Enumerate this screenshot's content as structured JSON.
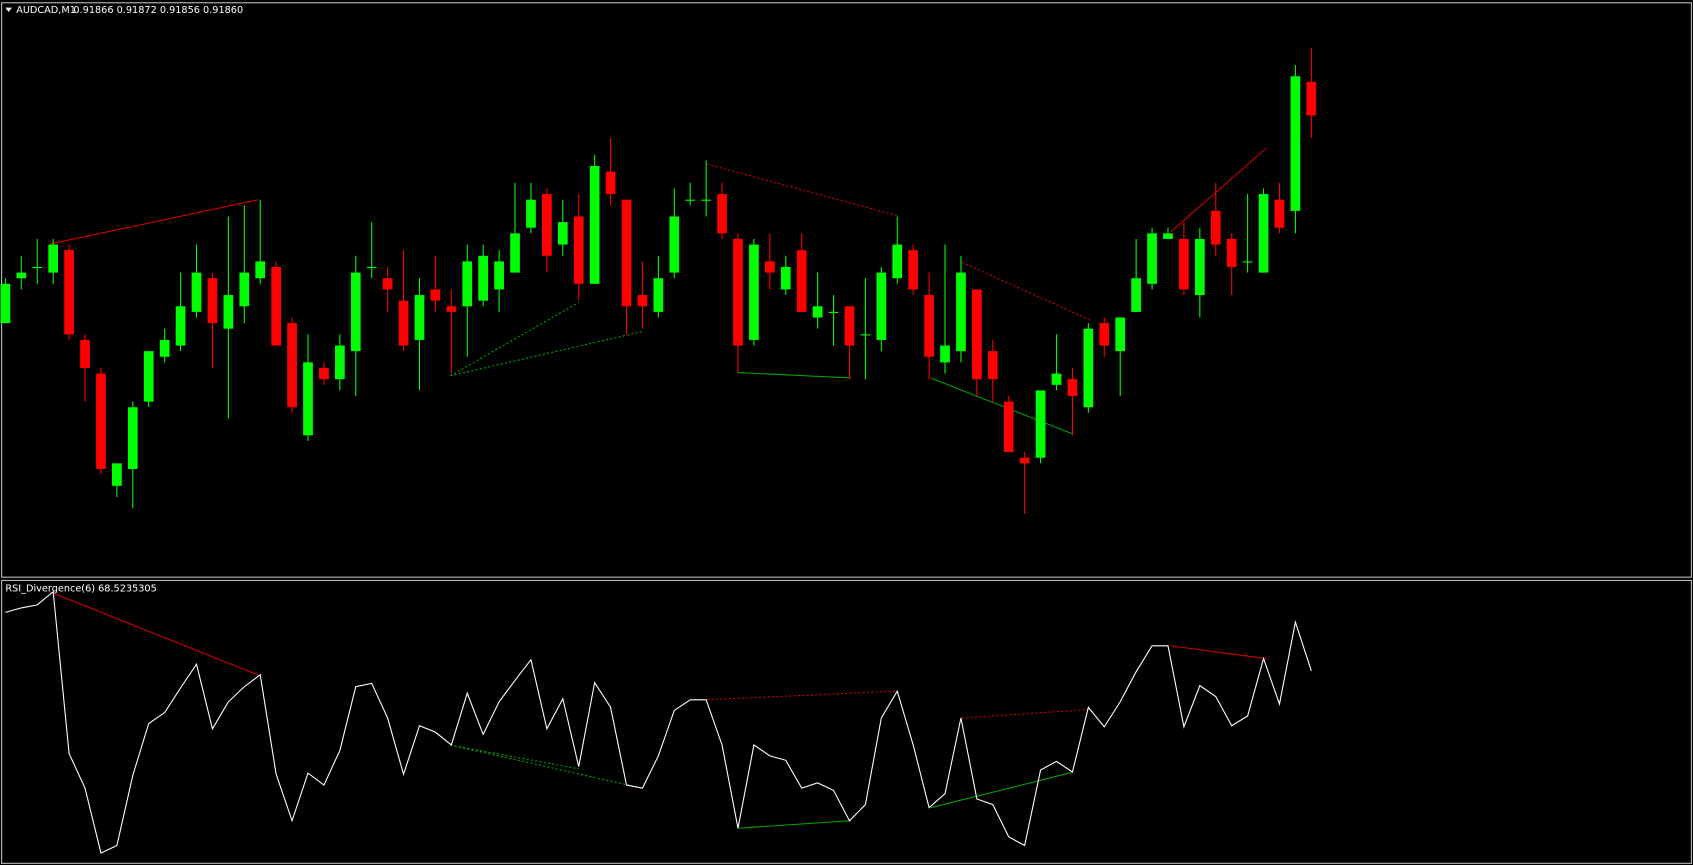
{
  "chart_data": [
    {
      "type": "candlestick",
      "title": "AUDCAD,M1",
      "subtitle": "0.91866 0.91872 0.91856 0.91860",
      "up_color": "#00ff00",
      "down_color": "#ff0000",
      "wick_color": "#00ff00",
      "ylim": [
        0.91778,
        0.9188
      ],
      "open": [
        0.91823,
        0.91831,
        0.91833,
        0.91832,
        0.91836,
        0.9182,
        0.91814,
        0.91794,
        0.91797,
        0.91809,
        0.91817,
        0.91819,
        0.91825,
        0.91831,
        0.91822,
        0.91826,
        0.91831,
        0.91833,
        0.91823,
        0.91803,
        0.91815,
        0.91813,
        0.91818,
        0.91833,
        0.91831,
        0.91827,
        0.9182,
        0.91829,
        0.91826,
        0.91826,
        0.91827,
        0.91829,
        0.91832,
        0.9184,
        0.91846,
        0.91837,
        0.91842,
        0.9183,
        0.9185,
        0.91845,
        0.91828,
        0.91825,
        0.91832,
        0.91845,
        0.91845,
        0.91846,
        0.91838,
        0.9182,
        0.91834,
        0.91829,
        0.91836,
        0.91824,
        0.91825,
        0.91826,
        0.91821,
        0.9182,
        0.91831,
        0.91836,
        0.91828,
        0.91816,
        0.91818,
        0.91829,
        0.91818,
        0.91809,
        0.91799,
        0.91799,
        0.91812,
        0.91813,
        0.91808,
        0.91823,
        0.91818,
        0.91825,
        0.9183,
        0.91838,
        0.91838,
        0.91828,
        0.91843,
        0.91838,
        0.91834,
        0.91832,
        0.91845,
        0.91843,
        0.91866
      ],
      "high": [
        0.91831,
        0.91835,
        0.91838,
        0.91838,
        0.91837,
        0.91821,
        0.91815,
        0.91798,
        0.91809,
        0.91818,
        0.91822,
        0.91832,
        0.91837,
        0.91832,
        0.91842,
        0.91844,
        0.91845,
        0.91834,
        0.91824,
        0.91821,
        0.91816,
        0.91821,
        0.91835,
        0.91841,
        0.91833,
        0.91836,
        0.91831,
        0.91835,
        0.91829,
        0.91837,
        0.91837,
        0.91836,
        0.91848,
        0.91848,
        0.91847,
        0.91845,
        0.91846,
        0.91853,
        0.91856,
        0.91845,
        0.91834,
        0.91835,
        0.91847,
        0.91848,
        0.91852,
        0.91848,
        0.91839,
        0.91838,
        0.91839,
        0.91835,
        0.91839,
        0.91832,
        0.91828,
        0.91826,
        0.91831,
        0.91833,
        0.91842,
        0.91837,
        0.91832,
        0.91837,
        0.91835,
        0.91829,
        0.9182,
        0.9181,
        0.918,
        0.91811,
        0.91821,
        0.91815,
        0.91823,
        0.91824,
        0.91824,
        0.91838,
        0.9184,
        0.9184,
        0.91841,
        0.9184,
        0.91848,
        0.91839,
        0.91846,
        0.91847,
        0.91848,
        0.91869,
        0.91872
      ],
      "low": [
        0.91823,
        0.91829,
        0.9183,
        0.9183,
        0.9182,
        0.91809,
        0.91796,
        0.91792,
        0.9179,
        0.91808,
        0.91816,
        0.91818,
        0.91824,
        0.91815,
        0.91806,
        0.91823,
        0.9183,
        0.91819,
        0.91807,
        0.91802,
        0.91812,
        0.91811,
        0.9181,
        0.91831,
        0.91825,
        0.91818,
        0.91811,
        0.91825,
        0.91814,
        0.91817,
        0.91826,
        0.91825,
        0.91832,
        0.91839,
        0.91832,
        0.91835,
        0.91827,
        0.9183,
        0.91844,
        0.91821,
        0.91822,
        0.91824,
        0.91831,
        0.91844,
        0.91842,
        0.91838,
        0.91814,
        0.91819,
        0.91829,
        0.91828,
        0.91825,
        0.91822,
        0.91819,
        0.91813,
        0.91813,
        0.91818,
        0.9183,
        0.91828,
        0.91813,
        0.91814,
        0.91816,
        0.9181,
        0.91809,
        0.918,
        0.91789,
        0.91798,
        0.91811,
        0.91803,
        0.91807,
        0.91817,
        0.9181,
        0.91825,
        0.91829,
        0.91838,
        0.91828,
        0.91824,
        0.91835,
        0.91828,
        0.91832,
        0.91832,
        0.91839,
        0.91839,
        0.91856
      ],
      "close": [
        0.9183,
        0.91832,
        0.91833,
        0.91837,
        0.91821,
        0.91815,
        0.91797,
        0.91798,
        0.91808,
        0.91818,
        0.9182,
        0.91826,
        0.91832,
        0.91823,
        0.91828,
        0.91832,
        0.91834,
        0.91819,
        0.91808,
        0.91816,
        0.91813,
        0.91819,
        0.91832,
        0.91833,
        0.91829,
        0.91819,
        0.91828,
        0.91827,
        0.91825,
        0.91834,
        0.91835,
        0.91834,
        0.91839,
        0.91845,
        0.91835,
        0.91841,
        0.9183,
        0.91851,
        0.91846,
        0.91826,
        0.91826,
        0.91831,
        0.91842,
        0.91845,
        0.91845,
        0.91839,
        0.91819,
        0.91837,
        0.91832,
        0.91833,
        0.91825,
        0.91826,
        0.91825,
        0.91819,
        0.91821,
        0.91832,
        0.91837,
        0.91829,
        0.91817,
        0.91819,
        0.91832,
        0.91813,
        0.91813,
        0.918,
        0.91798,
        0.91811,
        0.91814,
        0.9181,
        0.91822,
        0.91819,
        0.91824,
        0.91831,
        0.91839,
        0.91839,
        0.91829,
        0.91838,
        0.91837,
        0.91833,
        0.91834,
        0.91846,
        0.9184,
        0.91867,
        0.9186
      ]
    },
    {
      "type": "line",
      "title": "RSI_Divergence(6) 68.5235305",
      "color": "#ffffff",
      "ylim": [
        0,
        100
      ],
      "values": [
        89.5,
        91.1,
        92.2,
        96.9,
        38.8,
        26.4,
        3.1,
        5.8,
        31.0,
        49.6,
        53.5,
        62.4,
        70.9,
        47.7,
        57.4,
        62.8,
        67.1,
        31.4,
        14.7,
        31.8,
        27.5,
        39.9,
        62.8,
        64.0,
        51.6,
        31.4,
        48.8,
        46.5,
        41.9,
        60.5,
        45.7,
        57.4,
        65.1,
        72.5,
        47.7,
        58.5,
        34.1,
        64.3,
        55.4,
        27.5,
        26.4,
        38.0,
        54.3,
        58.1,
        58.1,
        41.9,
        12.0,
        41.9,
        38.0,
        36.4,
        26.4,
        28.3,
        25.6,
        14.7,
        20.5,
        51.6,
        61.2,
        41.9,
        19.4,
        24.4,
        51.6,
        22.5,
        20.5,
        8.9,
        5.8,
        32.9,
        36.0,
        32.2,
        55.4,
        48.4,
        57.4,
        68.2,
        77.5,
        77.5,
        48.4,
        63.2,
        59.3,
        48.8,
        52.3,
        72.9,
        56.6,
        86.0,
        68.5235305
      ]
    }
  ]
}
